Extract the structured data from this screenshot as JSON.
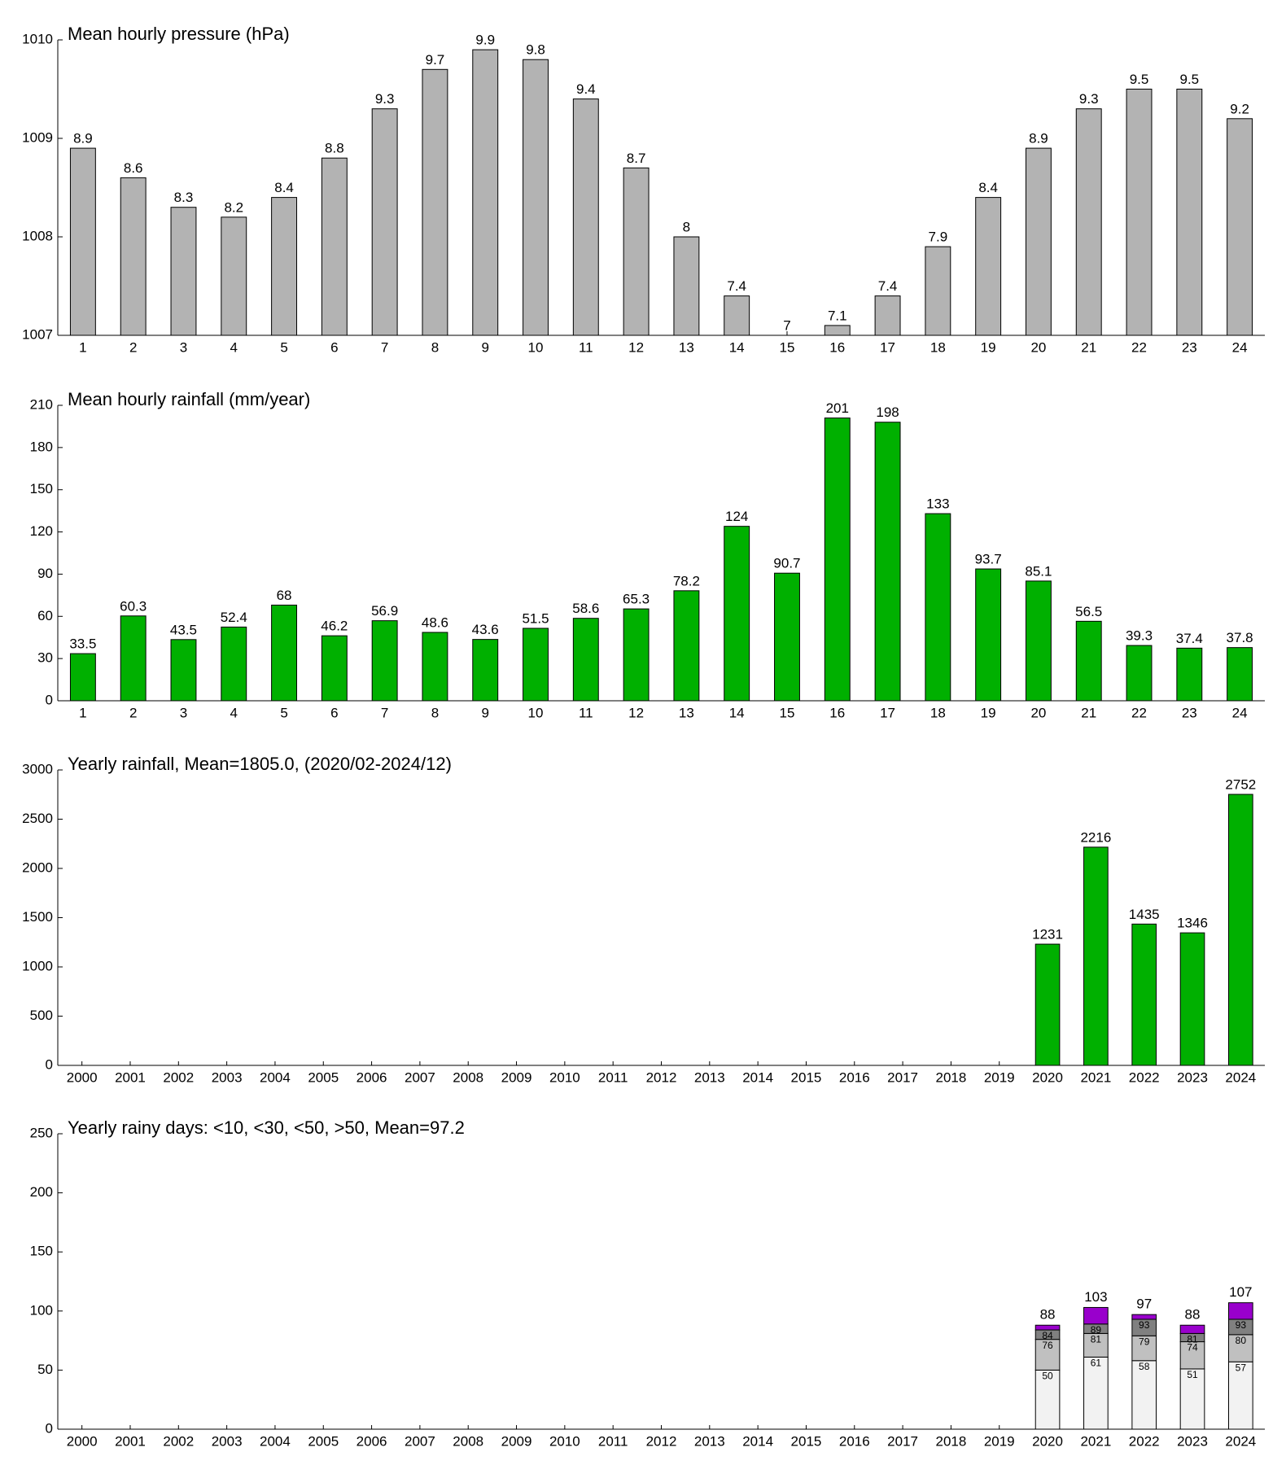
{
  "chart_data": [
    {
      "type": "bar",
      "title": "Mean hourly pressure (hPa)",
      "color": "#b3b3b3",
      "categories": [
        "1",
        "2",
        "3",
        "4",
        "5",
        "6",
        "7",
        "8",
        "9",
        "10",
        "11",
        "12",
        "13",
        "14",
        "15",
        "16",
        "17",
        "18",
        "19",
        "20",
        "21",
        "22",
        "23",
        "24"
      ],
      "values": [
        1008.9,
        1008.6,
        1008.3,
        1008.2,
        1008.4,
        1008.8,
        1009.3,
        1009.7,
        1009.9,
        1009.8,
        1009.4,
        1008.7,
        1008,
        1007.4,
        1007,
        1007.1,
        1007.4,
        1007.9,
        1008.4,
        1008.9,
        1009.3,
        1009.5,
        1009.5,
        1009.2
      ],
      "value_labels": [
        "8.9",
        "8.6",
        "8.3",
        "8.2",
        "8.4",
        "8.8",
        "9.3",
        "9.7",
        "9.9",
        "9.8",
        "9.4",
        "8.7",
        "8",
        "7.4",
        "7",
        "7.1",
        "7.4",
        "7.9",
        "8.4",
        "8.9",
        "9.3",
        "9.5",
        "9.5",
        "9.2"
      ],
      "ylim": [
        1007,
        1010
      ],
      "yticks": [
        1007,
        1008,
        1009,
        1010
      ]
    },
    {
      "type": "bar",
      "title": "Mean hourly rainfall (mm/year)",
      "color": "#00b000",
      "categories": [
        "1",
        "2",
        "3",
        "4",
        "5",
        "6",
        "7",
        "8",
        "9",
        "10",
        "11",
        "12",
        "13",
        "14",
        "15",
        "16",
        "17",
        "18",
        "19",
        "20",
        "21",
        "22",
        "23",
        "24"
      ],
      "values": [
        33.5,
        60.3,
        43.5,
        52.4,
        68,
        46.2,
        56.9,
        48.6,
        43.6,
        51.5,
        58.6,
        65.3,
        78.2,
        124,
        90.7,
        201,
        198,
        133,
        93.7,
        85.1,
        56.5,
        39.3,
        37.4,
        37.8
      ],
      "ylim": [
        0,
        210
      ],
      "yticks": [
        0,
        30,
        60,
        90,
        120,
        150,
        180,
        210
      ]
    },
    {
      "type": "bar",
      "title": "Yearly rainfall, Mean=1805.0, (2020/02-2024/12)",
      "color": "#00b000",
      "categories": [
        "2000",
        "2001",
        "2002",
        "2003",
        "2004",
        "2005",
        "2006",
        "2007",
        "2008",
        "2009",
        "2010",
        "2011",
        "2012",
        "2013",
        "2014",
        "2015",
        "2016",
        "2017",
        "2018",
        "2019",
        "2020",
        "2021",
        "2022",
        "2023",
        "2024"
      ],
      "values": [
        null,
        null,
        null,
        null,
        null,
        null,
        null,
        null,
        null,
        null,
        null,
        null,
        null,
        null,
        null,
        null,
        null,
        null,
        null,
        null,
        1231,
        2216,
        1435,
        1346,
        2752
      ],
      "ylim": [
        0,
        3000
      ],
      "yticks": [
        0,
        500,
        1000,
        1500,
        2000,
        2500,
        3000
      ]
    },
    {
      "type": "stacked_bar",
      "title": "Yearly rainy days: <10, <30, <50, >50, Mean=97.2",
      "categories": [
        "2000",
        "2001",
        "2002",
        "2003",
        "2004",
        "2005",
        "2006",
        "2007",
        "2008",
        "2009",
        "2010",
        "2011",
        "2012",
        "2013",
        "2014",
        "2015",
        "2016",
        "2017",
        "2018",
        "2019",
        "2020",
        "2021",
        "2022",
        "2023",
        "2024"
      ],
      "series": [
        {
          "color": "#f2f2f2",
          "values": [
            null,
            null,
            null,
            null,
            null,
            null,
            null,
            null,
            null,
            null,
            null,
            null,
            null,
            null,
            null,
            null,
            null,
            null,
            null,
            null,
            50,
            61,
            58,
            51,
            57
          ],
          "labels": [
            null,
            null,
            null,
            null,
            null,
            null,
            null,
            null,
            null,
            null,
            null,
            null,
            null,
            null,
            null,
            null,
            null,
            null,
            null,
            null,
            "50",
            "61",
            "58",
            "51",
            "57"
          ]
        },
        {
          "color": "#c0c0c0",
          "values": [
            null,
            null,
            null,
            null,
            null,
            null,
            null,
            null,
            null,
            null,
            null,
            null,
            null,
            null,
            null,
            null,
            null,
            null,
            null,
            null,
            26,
            20,
            21,
            23,
            23
          ],
          "labels": [
            null,
            null,
            null,
            null,
            null,
            null,
            null,
            null,
            null,
            null,
            null,
            null,
            null,
            null,
            null,
            null,
            null,
            null,
            null,
            null,
            "76",
            "81",
            "79",
            "74",
            "80"
          ]
        },
        {
          "color": "#808080",
          "values": [
            null,
            null,
            null,
            null,
            null,
            null,
            null,
            null,
            null,
            null,
            null,
            null,
            null,
            null,
            null,
            null,
            null,
            null,
            null,
            null,
            8,
            8,
            14,
            7,
            13
          ],
          "labels": [
            null,
            null,
            null,
            null,
            null,
            null,
            null,
            null,
            null,
            null,
            null,
            null,
            null,
            null,
            null,
            null,
            null,
            null,
            null,
            null,
            "84",
            "89",
            "93",
            "81",
            "93"
          ]
        },
        {
          "color": "#9900cc",
          "values": [
            null,
            null,
            null,
            null,
            null,
            null,
            null,
            null,
            null,
            null,
            null,
            null,
            null,
            null,
            null,
            null,
            null,
            null,
            null,
            null,
            4,
            14,
            4,
            7,
            14
          ]
        }
      ],
      "totals": [
        null,
        null,
        null,
        null,
        null,
        null,
        null,
        null,
        null,
        null,
        null,
        null,
        null,
        null,
        null,
        null,
        null,
        null,
        null,
        null,
        "88",
        "103",
        "97",
        "88",
        "107"
      ],
      "ylim": [
        0,
        250
      ],
      "yticks": [
        0,
        50,
        100,
        150,
        200,
        250
      ]
    }
  ]
}
